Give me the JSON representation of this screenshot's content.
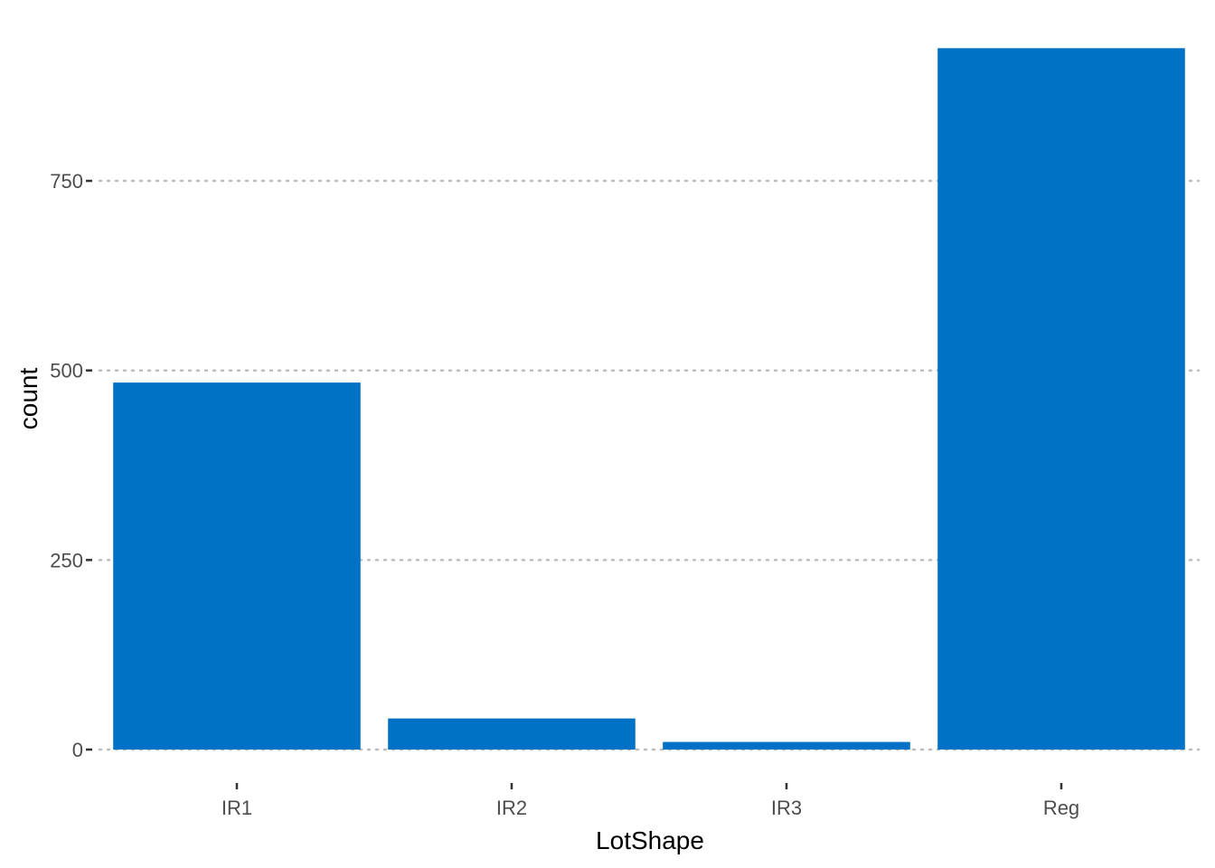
{
  "chart_data": {
    "type": "bar",
    "categories": [
      "IR1",
      "IR2",
      "IR3",
      "Reg"
    ],
    "values": [
      484,
      41,
      10,
      925
    ],
    "xlabel": "LotShape",
    "ylabel": "count",
    "ylim": [
      0,
      925
    ],
    "yticks": [
      0,
      250,
      500,
      750
    ],
    "bar_color": "#0072C6",
    "grid": "horizontal-dotted"
  }
}
